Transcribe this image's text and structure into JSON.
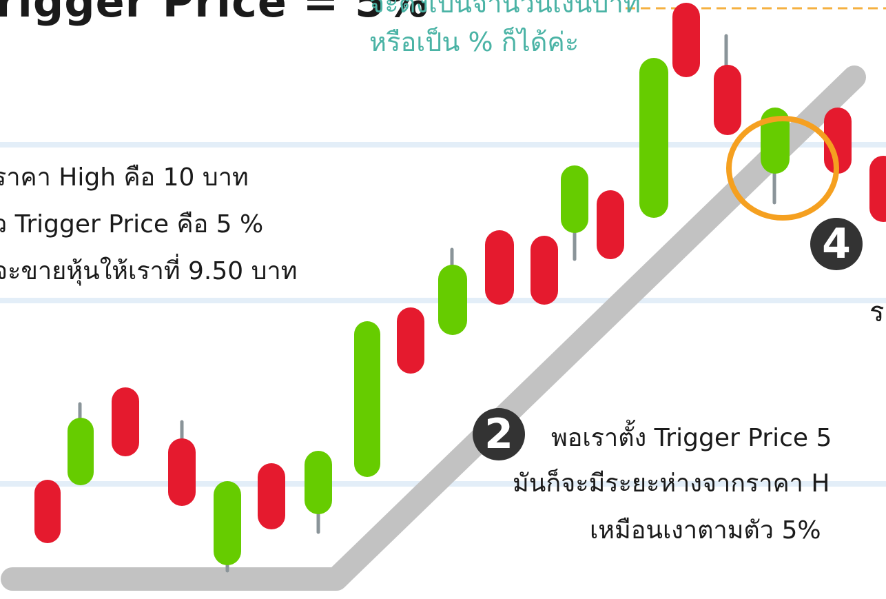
{
  "title": "rigger Price = 5%",
  "note": {
    "line1": "จะตั้งเป็นจำนวนเงินบาท",
    "line2": "หรือเป็น % ก็ได้ค่ะ"
  },
  "step1": {
    "line1": "ราคา High คือ 10 บาท",
    "line2": "ว Trigger Price คือ 5 %",
    "line3": "จะขายหุ้นให้เราที่ 9.50 บาท"
  },
  "step2": {
    "badge": "2",
    "line1": "พอเราตั้ง Trigger Price 5",
    "line2": "มันก็จะมีระยะห่างจากราคา H",
    "line3": "เหมือนเงาตามตัว 5%"
  },
  "step4": {
    "badge": "4",
    "fragment": "ร"
  },
  "colors": {
    "bullish": "#66cc00",
    "bearish": "#e51a2e",
    "wick": "#8a9499",
    "trendline": "#c2c2c2",
    "highlight_circle": "#f5a020",
    "high_dashed_line": "#f5b040",
    "note_text": "#4ab3a5",
    "paper_lines": "#e3eef8"
  },
  "candles": [
    {
      "type": "bearish"
    },
    {
      "type": "bullish"
    },
    {
      "type": "bearish"
    },
    {
      "type": "bearish"
    },
    {
      "type": "bullish"
    },
    {
      "type": "bearish"
    },
    {
      "type": "bullish"
    },
    {
      "type": "bullish"
    },
    {
      "type": "bearish"
    },
    {
      "type": "bullish"
    },
    {
      "type": "bearish"
    },
    {
      "type": "bearish"
    },
    {
      "type": "bullish"
    },
    {
      "type": "bearish"
    },
    {
      "type": "bullish"
    },
    {
      "type": "bearish"
    },
    {
      "type": "bearish"
    },
    {
      "type": "bullish"
    },
    {
      "type": "bearish"
    },
    {
      "type": "bearish"
    }
  ],
  "icons": {
    "highlight": "circle-highlight-icon",
    "trend": "trendline-icon"
  }
}
